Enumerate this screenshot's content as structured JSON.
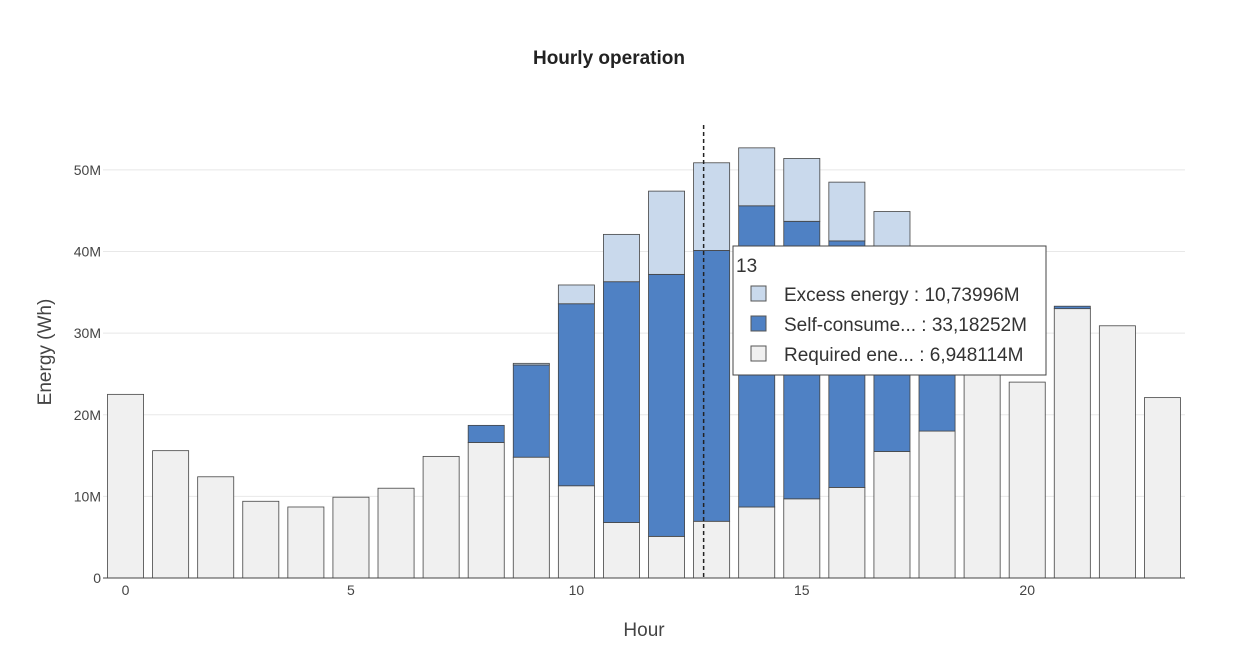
{
  "chart_data": {
    "type": "bar",
    "stacked": true,
    "title": "Hourly operation",
    "xlabel": "Hour",
    "ylabel": "Energy (Wh)",
    "x": [
      0,
      1,
      2,
      3,
      4,
      5,
      6,
      7,
      8,
      9,
      10,
      11,
      12,
      13,
      14,
      15,
      16,
      17,
      18,
      19,
      20,
      21,
      22,
      23
    ],
    "x_ticks": [
      0,
      5,
      10,
      15,
      20
    ],
    "y_ticks": [
      0,
      10000000,
      20000000,
      30000000,
      40000000,
      50000000
    ],
    "y_tick_labels": [
      "0",
      "10M",
      "20M",
      "30M",
      "40M",
      "50M"
    ],
    "ylim": [
      0,
      55500000
    ],
    "xlim": [
      -0.5,
      23.5
    ],
    "grid": true,
    "series": [
      {
        "name": "Required energy",
        "color": "#f0f0f0",
        "values": [
          22500000,
          15600000,
          12400000,
          9400000,
          8700000,
          9900000,
          11000000,
          14900000,
          16600000,
          14800000,
          11300000,
          6800000,
          5100000,
          6948114,
          8700000,
          9700000,
          11100000,
          15500000,
          18000000,
          26000000,
          24000000,
          33000000,
          30900000,
          22100000
        ]
      },
      {
        "name": "Self-consumed energy",
        "color": "#4f81c4",
        "values": [
          0,
          0,
          0,
          0,
          0,
          0,
          0,
          0,
          2100000,
          11300000,
          22300000,
          29500000,
          32100000,
          33182520,
          36900000,
          34000000,
          30200000,
          23000000,
          14500000,
          0,
          0,
          300000,
          0,
          0
        ]
      },
      {
        "name": "Excess energy",
        "color": "#c9d9ec",
        "values": [
          0,
          0,
          0,
          0,
          0,
          0,
          0,
          0,
          0,
          200000,
          2300000,
          5800000,
          10200000,
          10739960,
          7100000,
          7700000,
          7200000,
          6400000,
          2500000,
          0,
          0,
          0,
          0,
          0
        ]
      }
    ],
    "hover": {
      "x": 13,
      "label": "13",
      "rows": [
        {
          "label": "Excess energy : 10,73996M",
          "color": "#c9d9ec"
        },
        {
          "label": "Self-consume... : 33,18252M",
          "color": "#4f81c4"
        },
        {
          "label": "Required ene... : 6,948114M",
          "color": "#f0f0f0"
        }
      ]
    }
  }
}
